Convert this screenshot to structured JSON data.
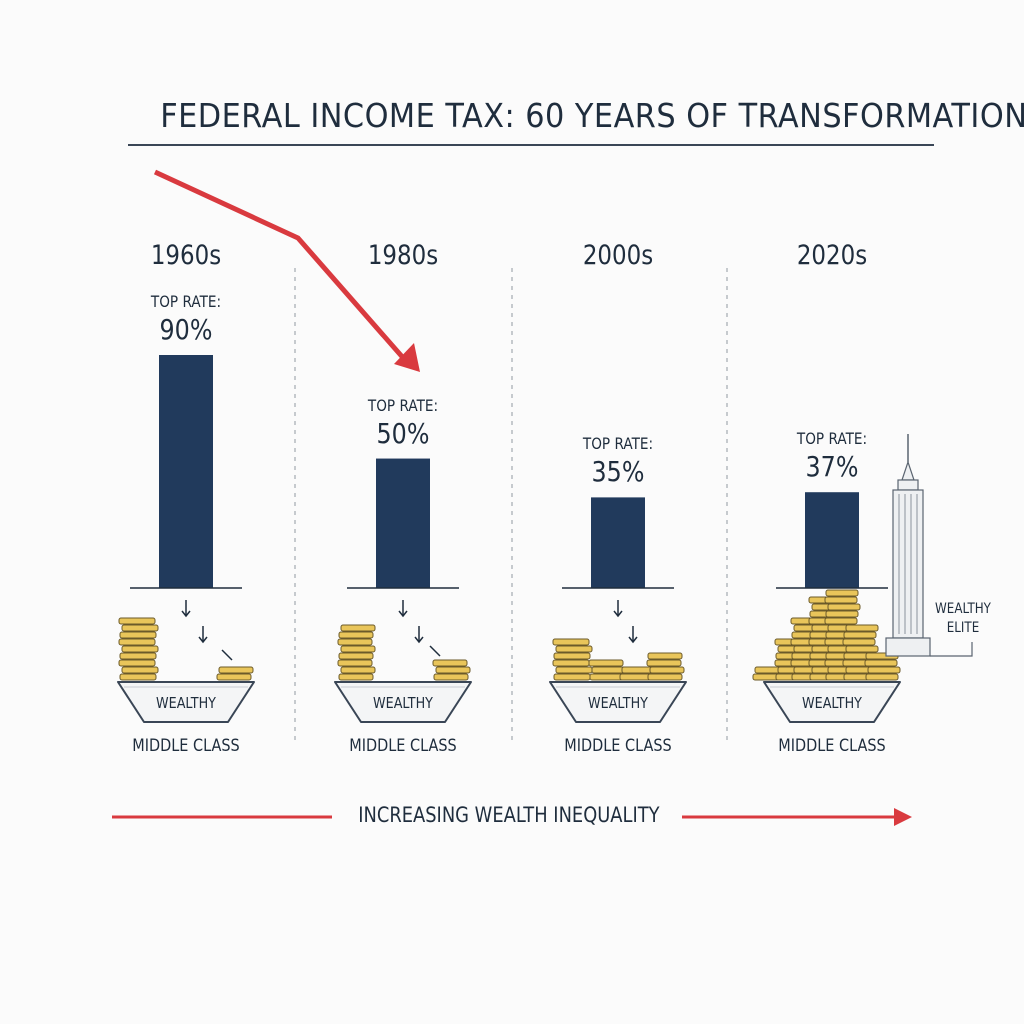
{
  "chart_data": {
    "type": "bar",
    "title": "FEDERAL INCOME TAX: 60 YEARS OF TRANSFORMATION",
    "categories": [
      "1960s",
      "1980s",
      "2000s",
      "2020s"
    ],
    "series": [
      {
        "values": [
          90,
          50,
          35,
          37
        ]
      }
    ],
    "value_prefix": "TOP RATE:",
    "value_suffix": "%",
    "ylim": [
      0,
      100
    ],
    "grid": false,
    "bar_color": "#213a5c",
    "accent_color": "#d93a3f",
    "coin_color": "#e9c55a",
    "bowl_label": "WEALTHY",
    "class_label": "MIDDLE CLASS",
    "elite_label": [
      "WEALTHY",
      "ELITE"
    ],
    "annotation": "INCREASING WEALTH INEQUALITY",
    "icons": [
      "coin-stack-icon",
      "bowl-icon",
      "skyscraper-icon",
      "down-arrow-icon",
      "trend-arrow-icon"
    ]
  }
}
